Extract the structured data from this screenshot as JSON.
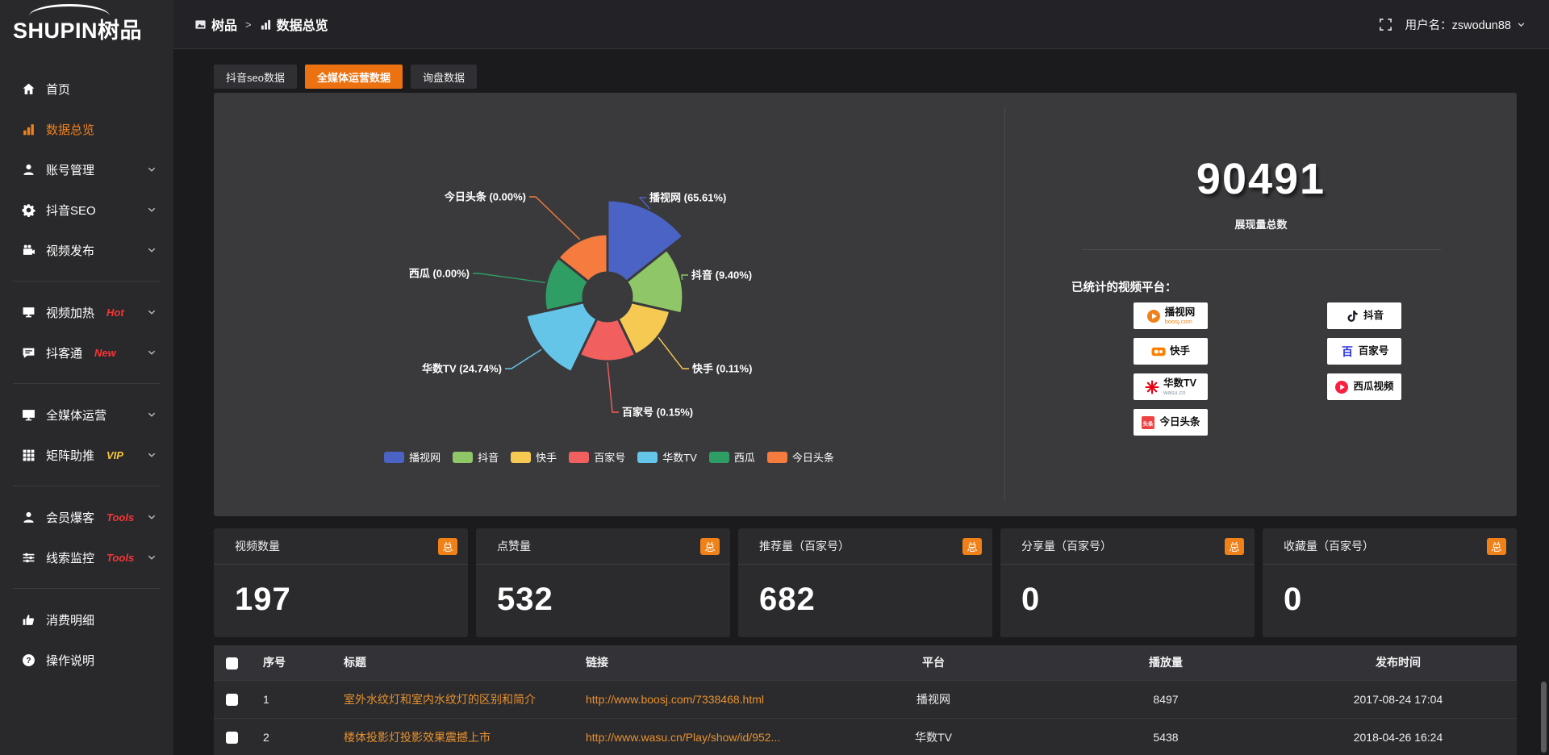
{
  "brand": {
    "logo_text": "SHUPIN树品"
  },
  "topbar": {
    "breadcrumb": [
      {
        "icon": "app-icon",
        "label": "树品"
      },
      {
        "icon": "chart-icon",
        "label": "数据总览"
      }
    ],
    "separator": ">",
    "fullscreen_icon": "fullscreen-icon",
    "user_label": "用户名：zswodun88"
  },
  "sidebar": {
    "items": [
      {
        "icon": "home-icon",
        "label": "首页"
      },
      {
        "icon": "chart-icon",
        "label": "数据总览",
        "active": true
      },
      {
        "icon": "user-icon",
        "label": "账号管理",
        "expandable": true
      },
      {
        "icon": "gear-icon",
        "label": "抖音SEO",
        "expandable": true
      },
      {
        "icon": "video-icon",
        "label": "视频发布",
        "expandable": true
      },
      {
        "divider": true
      },
      {
        "icon": "heat-icon",
        "label": "视频加热",
        "badge": "Hot",
        "badge_color": "#f63535",
        "expandable": true
      },
      {
        "icon": "chat-icon",
        "label": "抖客通",
        "badge": "New",
        "badge_color": "#f63535",
        "expandable": true
      },
      {
        "divider": true
      },
      {
        "icon": "monitor-icon",
        "label": "全媒体运营",
        "expandable": true
      },
      {
        "icon": "grid-icon",
        "label": "矩阵助推",
        "badge": "VIP",
        "badge_color": "#f5c53a",
        "expandable": true
      },
      {
        "divider": true
      },
      {
        "icon": "person-icon",
        "label": "会员爆客",
        "badge": "Tools",
        "badge_color": "#f63535",
        "expandable": true
      },
      {
        "icon": "sliders-icon",
        "label": "线索监控",
        "badge": "Tools",
        "badge_color": "#f63535",
        "expandable": true
      },
      {
        "divider": true
      },
      {
        "icon": "wallet-icon",
        "label": "消费明细"
      },
      {
        "icon": "question-icon",
        "label": "操作说明"
      }
    ]
  },
  "tabs": [
    {
      "label": "抖音seo数据",
      "active": false
    },
    {
      "label": "全媒体运营数据",
      "active": true
    },
    {
      "label": "询盘数据",
      "active": false
    }
  ],
  "chart_data": {
    "type": "pie",
    "variant": "nightingale-rose",
    "categories": [
      "播视网",
      "抖音",
      "快手",
      "百家号",
      "华数TV",
      "西瓜",
      "今日头条"
    ],
    "percentages": [
      65.61,
      9.4,
      0.11,
      0.15,
      24.74,
      0.0,
      0.0
    ],
    "colors": [
      "#4c63c6",
      "#8fc768",
      "#f6ca52",
      "#f15f5f",
      "#64c5e9",
      "#2f9e64",
      "#f57b3e"
    ],
    "legend_position": "bottom",
    "label_format": "{name} ({pct}%)"
  },
  "summary": {
    "total": "90491",
    "total_label": "展现量总数",
    "platforms_label": "已统计的视频平台：",
    "platforms": [
      {
        "name": "播视网",
        "sub": "boosj.com",
        "sub_color": "#f08119",
        "icon": "boosj-play-icon"
      },
      {
        "name": "抖音",
        "icon": "douyin-note-icon"
      },
      {
        "name": "快手",
        "icon": "kuaishou-icon"
      },
      {
        "name": "百家号",
        "icon": "baijiahao-icon"
      },
      {
        "name": "华数TV",
        "sub": "wasu.cn",
        "sub_color": "#8a97a8",
        "icon": "wasu-star-icon"
      },
      {
        "name": "西瓜视频",
        "icon": "xigua-play-icon"
      },
      {
        "name": "今日头条",
        "icon": "toutiao-icon"
      }
    ]
  },
  "stat_cards": [
    {
      "title": "视频数量",
      "badge": "总",
      "value": "197"
    },
    {
      "title": "点赞量",
      "badge": "总",
      "value": "532"
    },
    {
      "title": "推荐量（百家号）",
      "badge": "总",
      "value": "682"
    },
    {
      "title": "分享量（百家号）",
      "badge": "总",
      "value": "0"
    },
    {
      "title": "收藏量（百家号）",
      "badge": "总",
      "value": "0"
    }
  ],
  "table": {
    "headers": [
      "",
      "序号",
      "标题",
      "链接",
      "平台",
      "播放量",
      "发布时间"
    ],
    "rows": [
      {
        "checked": false,
        "index": "1",
        "title": "室外水纹灯和室内水纹灯的区别和简介",
        "link": "http://www.boosj.com/7338468.html",
        "platform": "播视网",
        "plays": "8497",
        "time": "2017-08-24 17:04"
      },
      {
        "checked": false,
        "index": "2",
        "title": "楼体投影灯投影效果震撼上市",
        "link": "http://www.wasu.cn/Play/show/id/952...",
        "platform": "华数TV",
        "plays": "5438",
        "time": "2018-04-26 16:24"
      }
    ]
  },
  "colors": {
    "accent": "#ec7211",
    "sidebar_active": "#f08119",
    "link": "#e8912d",
    "badge_bg": "#f08119"
  }
}
